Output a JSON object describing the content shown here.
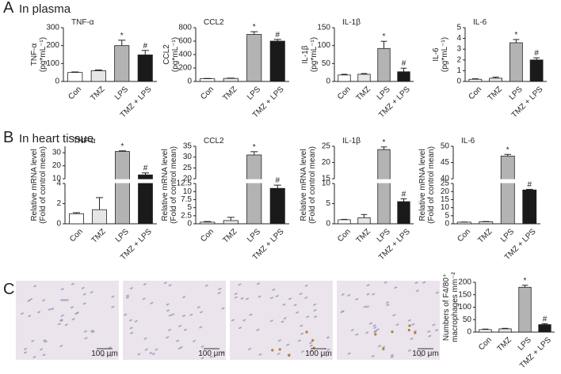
{
  "panels": [
    {
      "letter": "A",
      "title": "In plasma"
    },
    {
      "letter": "B",
      "title": "In heart tissue"
    },
    {
      "letter": "C"
    }
  ],
  "scale_bars": [
    "100 μm",
    "100 μm",
    "100 μm",
    "100 μm"
  ],
  "chart_data": [
    {
      "type": "bar",
      "title": "TNF-α",
      "ylabel": [
        "TNF-α",
        "(pg*mL⁻¹)"
      ],
      "categories": [
        "Con",
        "TMZ",
        "LPS",
        "TMZ + LPS"
      ],
      "values": [
        50,
        60,
        200,
        148
      ],
      "errors": [
        3,
        4,
        30,
        25
      ],
      "colors": [
        "#ffffff",
        "#e6e6e6",
        "#b3b3b3",
        "#1a1a1a"
      ],
      "value_annotations": [
        null,
        null,
        "*",
        "#"
      ],
      "ylim": [
        0,
        300
      ],
      "yticks": [
        0,
        100,
        200,
        300
      ]
    },
    {
      "type": "bar",
      "title": "CCL2",
      "ylabel": [
        "CCL2",
        "(pg*mL⁻¹)"
      ],
      "categories": [
        "Con",
        "TMZ",
        "LPS",
        "TMZ + LPS"
      ],
      "values": [
        40,
        45,
        700,
        600
      ],
      "errors": [
        5,
        5,
        40,
        25
      ],
      "colors": [
        "#ffffff",
        "#e6e6e6",
        "#b3b3b3",
        "#1a1a1a"
      ],
      "value_annotations": [
        null,
        null,
        "*",
        "#"
      ],
      "ylim": [
        0,
        800
      ],
      "yticks": [
        0,
        200,
        400,
        600,
        800
      ]
    },
    {
      "type": "bar",
      "title": "IL-1β",
      "ylabel": [
        "IL-1β",
        "(pg*mL⁻¹)"
      ],
      "categories": [
        "Con",
        "TMZ",
        "LPS",
        "TMZ + LPS"
      ],
      "values": [
        18,
        20,
        92,
        27
      ],
      "errors": [
        2,
        2,
        20,
        10
      ],
      "colors": [
        "#ffffff",
        "#e6e6e6",
        "#b3b3b3",
        "#1a1a1a"
      ],
      "value_annotations": [
        null,
        null,
        "*",
        "#"
      ],
      "ylim": [
        0,
        150
      ],
      "yticks": [
        0,
        50,
        100,
        150
      ]
    },
    {
      "type": "bar",
      "title": "IL-6",
      "ylabel": [
        "IL-6",
        "(pg*mL⁻¹)"
      ],
      "categories": [
        "Con",
        "TMZ",
        "LPS",
        "TMZ + LPS"
      ],
      "values": [
        0.2,
        0.3,
        3.6,
        2.0
      ],
      "errors": [
        0.05,
        0.1,
        0.3,
        0.2
      ],
      "colors": [
        "#ffffff",
        "#e6e6e6",
        "#b3b3b3",
        "#1a1a1a"
      ],
      "value_annotations": [
        null,
        null,
        "*",
        "#"
      ],
      "ylim": [
        0,
        5
      ],
      "yticks": [
        0,
        1,
        2,
        3,
        4,
        5
      ]
    },
    {
      "type": "bar",
      "title": "TNF-α",
      "ylabel": [
        "Relative mRNA level",
        "(Fold of control mean)"
      ],
      "categories": [
        "Con",
        "TMZ",
        "LPS",
        "TMZ + LPS"
      ],
      "values": [
        1.0,
        1.4,
        31,
        13
      ],
      "errors": [
        0.1,
        1.2,
        0.5,
        1.5
      ],
      "colors": [
        "#ffffff",
        "#e6e6e6",
        "#b3b3b3",
        "#1a1a1a"
      ],
      "value_annotations": [
        null,
        null,
        "*",
        "#"
      ],
      "ylim": [
        0,
        35
      ],
      "ybreak": [
        4,
        10
      ],
      "yticks": [
        0,
        2,
        4,
        10,
        20,
        30
      ]
    },
    {
      "type": "bar",
      "title": "CCL2",
      "ylabel": [
        "Relative mRNA level",
        "(Fold of control mean)"
      ],
      "categories": [
        "Con",
        "TMZ",
        "LPS",
        "TMZ + LPS"
      ],
      "values": [
        0.5,
        1.0,
        31,
        11
      ],
      "errors": [
        0.2,
        1.0,
        1.5,
        1.0
      ],
      "colors": [
        "#ffffff",
        "#e6e6e6",
        "#b3b3b3",
        "#1a1a1a"
      ],
      "value_annotations": [
        null,
        null,
        "*",
        "#"
      ],
      "ylim": [
        0,
        35
      ],
      "ybreak": [
        12.5,
        20
      ],
      "yticks": [
        0,
        2.5,
        5,
        7.5,
        10,
        12.5,
        20,
        25,
        30,
        35
      ]
    },
    {
      "type": "bar",
      "title": "IL-1β",
      "ylabel": [
        "Relative mRNA level",
        "(Fold of control mean)"
      ],
      "categories": [
        "Con",
        "TMZ",
        "LPS",
        "TMZ + LPS"
      ],
      "values": [
        1.0,
        1.5,
        24,
        5.5
      ],
      "errors": [
        0.1,
        0.8,
        0.8,
        0.7
      ],
      "colors": [
        "#ffffff",
        "#e6e6e6",
        "#b3b3b3",
        "#1a1a1a"
      ],
      "value_annotations": [
        null,
        null,
        "*",
        "#"
      ],
      "ylim": [
        0,
        25
      ],
      "ybreak": [
        10,
        15
      ],
      "yticks": [
        0,
        5,
        10,
        15,
        20,
        25
      ]
    },
    {
      "type": "bar",
      "title": "IL-6",
      "ylabel": [
        "Relative mRNA level",
        "(Fold of control mean)"
      ],
      "categories": [
        "Con",
        "TMZ",
        "LPS",
        "TMZ + LPS"
      ],
      "values": [
        1.0,
        1.2,
        47,
        21
      ],
      "errors": [
        0.1,
        0.2,
        0.5,
        0.4
      ],
      "colors": [
        "#ffffff",
        "#e6e6e6",
        "#b3b3b3",
        "#1a1a1a"
      ],
      "value_annotations": [
        null,
        null,
        "*",
        "#"
      ],
      "ylim": [
        0,
        50
      ],
      "ybreak": [
        25,
        40
      ],
      "yticks": [
        0,
        5,
        10,
        15,
        20,
        25,
        40,
        45,
        50
      ]
    },
    {
      "type": "bar",
      "ylabel": [
        "Numbers of F4/80⁺",
        "macrophages mm⁻²"
      ],
      "categories": [
        "Con",
        "TMZ",
        "LPS",
        "TMZ + LPS"
      ],
      "values": [
        10,
        13,
        180,
        30
      ],
      "errors": [
        2,
        2,
        8,
        4
      ],
      "colors": [
        "#ffffff",
        "#e6e6e6",
        "#b3b3b3",
        "#1a1a1a"
      ],
      "value_annotations": [
        null,
        null,
        "*",
        "#"
      ],
      "ylim": [
        0,
        200
      ],
      "yticks": [
        0,
        50,
        100,
        150,
        200
      ]
    }
  ]
}
